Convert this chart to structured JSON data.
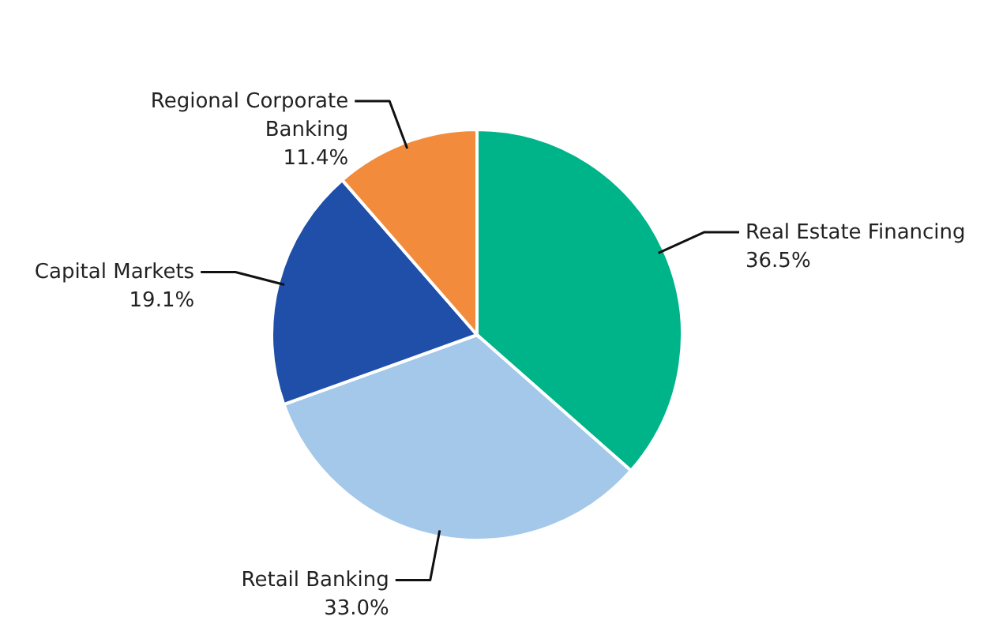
{
  "chart_data": {
    "type": "pie",
    "categories": [
      "Real Estate Financing",
      "Retail Banking",
      "Capital Markets",
      "Regional Corporate Banking"
    ],
    "values": [
      36.5,
      33.0,
      19.1,
      11.4
    ],
    "colors": [
      "#00b48a",
      "#a3c8ea",
      "#1f4fa8",
      "#f28c3c"
    ],
    "value_labels": [
      "36.5%",
      "33.0%",
      "19.1%",
      "11.4%"
    ]
  }
}
